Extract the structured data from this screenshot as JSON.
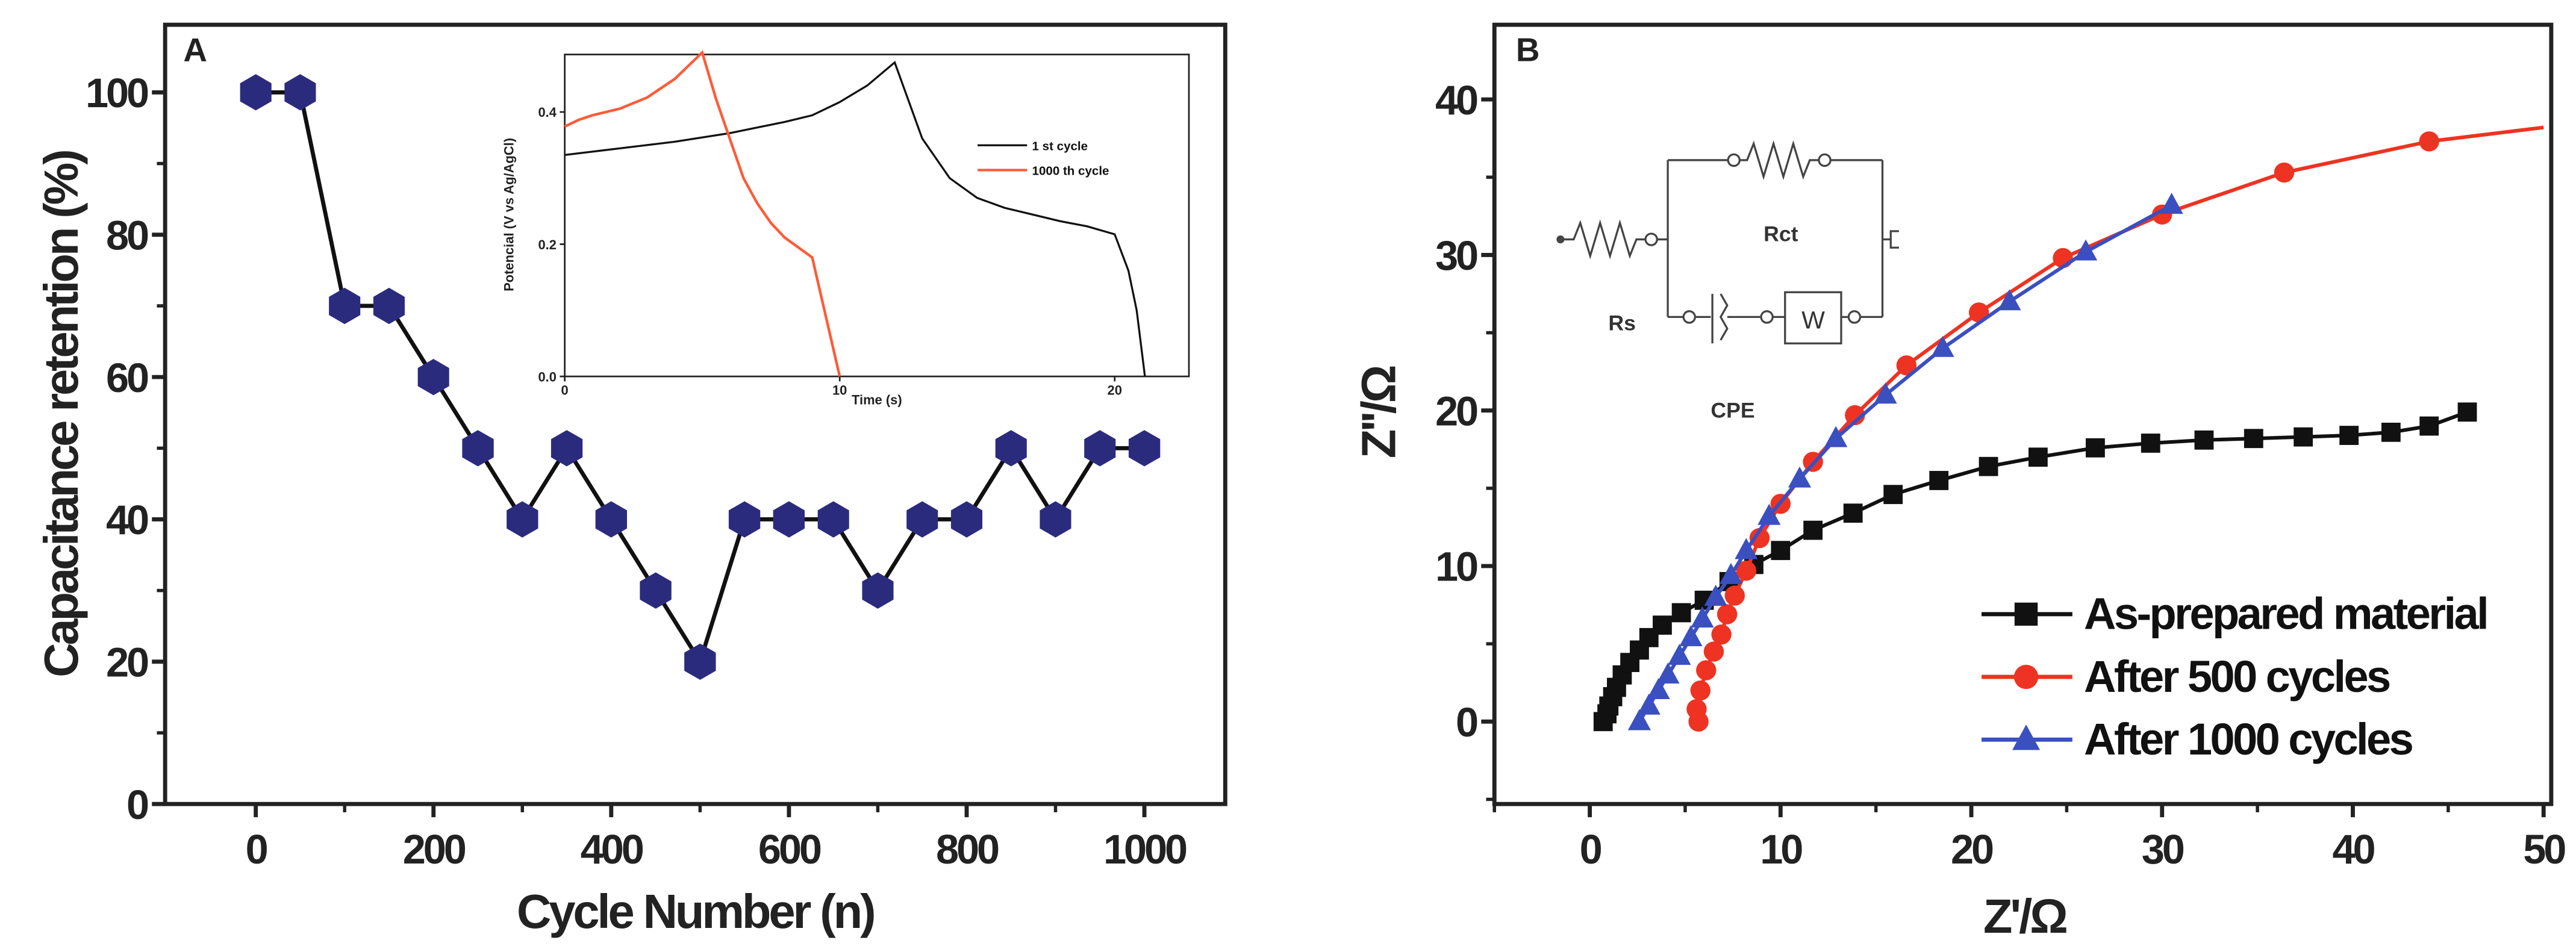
{
  "chart_data": [
    {
      "panel": "A",
      "type": "line",
      "xlabel": "Cycle Number (n)",
      "ylabel": "Capacitance retention (%)",
      "xlim": [
        -102,
        1091
      ],
      "ylim": [
        0,
        109.5
      ],
      "xticks": [
        0,
        200,
        400,
        600,
        800,
        1000
      ],
      "yticks": [
        0,
        20,
        40,
        60,
        80,
        100
      ],
      "marker": "hexagon",
      "marker_color": "#2b2b7e",
      "line_color": "#111111",
      "x": [
        0,
        50,
        100,
        150,
        200,
        250,
        300,
        350,
        400,
        450,
        500,
        550,
        600,
        650,
        700,
        750,
        800,
        850,
        900,
        950,
        1000
      ],
      "y": [
        100,
        100,
        70,
        70,
        60,
        50,
        40,
        50,
        40,
        30,
        20,
        40,
        40,
        40,
        30,
        40,
        40,
        50,
        40,
        50,
        50
      ],
      "inset": {
        "type": "line",
        "xlabel": "Time (s)",
        "ylabel": "Potencial (V vs Ag/AgCl)",
        "xlim": [
          0,
          22.7
        ],
        "ylim": [
          0,
          0.487
        ],
        "xticks": [
          "0",
          "10",
          "20"
        ],
        "xtick_values": [
          0,
          10,
          20
        ],
        "yticks": [
          "0.0",
          "0.2",
          "0.4"
        ],
        "ytick_values": [
          0,
          0.2,
          0.4
        ],
        "legend_position": "top-right",
        "series": [
          {
            "name": "1 st cycle",
            "color": "#111111",
            "x": [
              0,
              2,
              4,
              6,
              8,
              9,
              10,
              11,
              12,
              13,
              14,
              15,
              16,
              17,
              18,
              19,
              20,
              20.5,
              20.8,
              21.1
            ],
            "y": [
              0.335,
              0.345,
              0.355,
              0.368,
              0.385,
              0.395,
              0.415,
              0.44,
              0.475,
              0.36,
              0.3,
              0.27,
              0.255,
              0.245,
              0.235,
              0.227,
              0.215,
              0.16,
              0.1,
              0
            ]
          },
          {
            "name": "1000 th cycle",
            "color": "#ff5a36",
            "x": [
              0,
              0.5,
              1,
              2,
              3,
              4,
              4.5,
              5,
              5.5,
              6,
              6.5,
              7,
              7.5,
              8,
              9,
              9.5,
              10
            ],
            "y": [
              0.378,
              0.388,
              0.395,
              0.405,
              0.422,
              0.45,
              0.47,
              0.49,
              0.42,
              0.36,
              0.3,
              0.262,
              0.232,
              0.21,
              0.18,
              0.09,
              0
            ]
          }
        ]
      },
      "panel_label": "A"
    },
    {
      "panel": "B",
      "type": "line",
      "xlabel": "Z'/Ω",
      "ylabel": "Z''/Ω",
      "xlim": [
        -5,
        50.4
      ],
      "ylim": [
        -5.3,
        44.8
      ],
      "xticks": [
        0,
        10,
        20,
        30,
        40,
        50
      ],
      "yticks": [
        0,
        10,
        20,
        30,
        40
      ],
      "legend_position": "bottom-right",
      "series": [
        {
          "name": "As-prepared material",
          "color": "#111111",
          "marker": "square",
          "x": [
            0.7,
            0.9,
            1.0,
            1.2,
            1.4,
            1.7,
            2.1,
            2.6,
            3.1,
            3.8,
            4.8,
            6.0,
            7.3,
            8.6,
            10,
            11.7,
            13.8,
            15.9,
            18.3,
            20.9,
            23.5,
            26.5,
            29.4,
            32.2,
            34.8,
            37.4,
            39.8,
            42,
            44,
            46
          ],
          "y": [
            0,
            0.5,
            1,
            1.6,
            2.2,
            3,
            3.8,
            4.6,
            5.4,
            6.2,
            7,
            7.8,
            9,
            10.1,
            11,
            12.3,
            13.4,
            14.6,
            15.5,
            16.4,
            17,
            17.6,
            17.9,
            18.1,
            18.2,
            18.3,
            18.4,
            18.6,
            19,
            19.9
          ]
        },
        {
          "name": "After 500 cycles",
          "color": "#ee3322",
          "marker": "circle",
          "x": [
            5.7,
            5.6,
            5.8,
            6.1,
            6.5,
            6.9,
            7.2,
            7.6,
            8.2,
            8.9,
            10,
            11.7,
            13.9,
            16.6,
            20.4,
            24.8,
            30,
            36.4,
            44
          ],
          "y": [
            0,
            0.8,
            2,
            3.3,
            4.5,
            5.6,
            6.9,
            8.1,
            9.7,
            11.8,
            14,
            16.7,
            19.7,
            22.9,
            26.3,
            29.8,
            32.6,
            35.3,
            37.3
          ],
          "line_end": [
            50,
            38.2
          ]
        },
        {
          "name": "After 1000 cycles",
          "color": "#3a4fc0",
          "marker": "triangle",
          "x": [
            2.6,
            3.1,
            3.6,
            4.1,
            4.7,
            5.3,
            5.9,
            6.6,
            7.4,
            8.2,
            9.4,
            11,
            12.9,
            15.5,
            18.5,
            22,
            26,
            30.5
          ],
          "y": [
            0,
            1,
            2,
            3,
            4.2,
            5.4,
            6.6,
            8,
            9.4,
            11,
            13.2,
            15.6,
            18.2,
            21,
            24,
            27,
            30.2,
            33.2
          ]
        }
      ],
      "circuit": {
        "labels": [
          "Rs",
          "Rct",
          "CPE",
          "W"
        ]
      },
      "panel_label": "B"
    }
  ]
}
